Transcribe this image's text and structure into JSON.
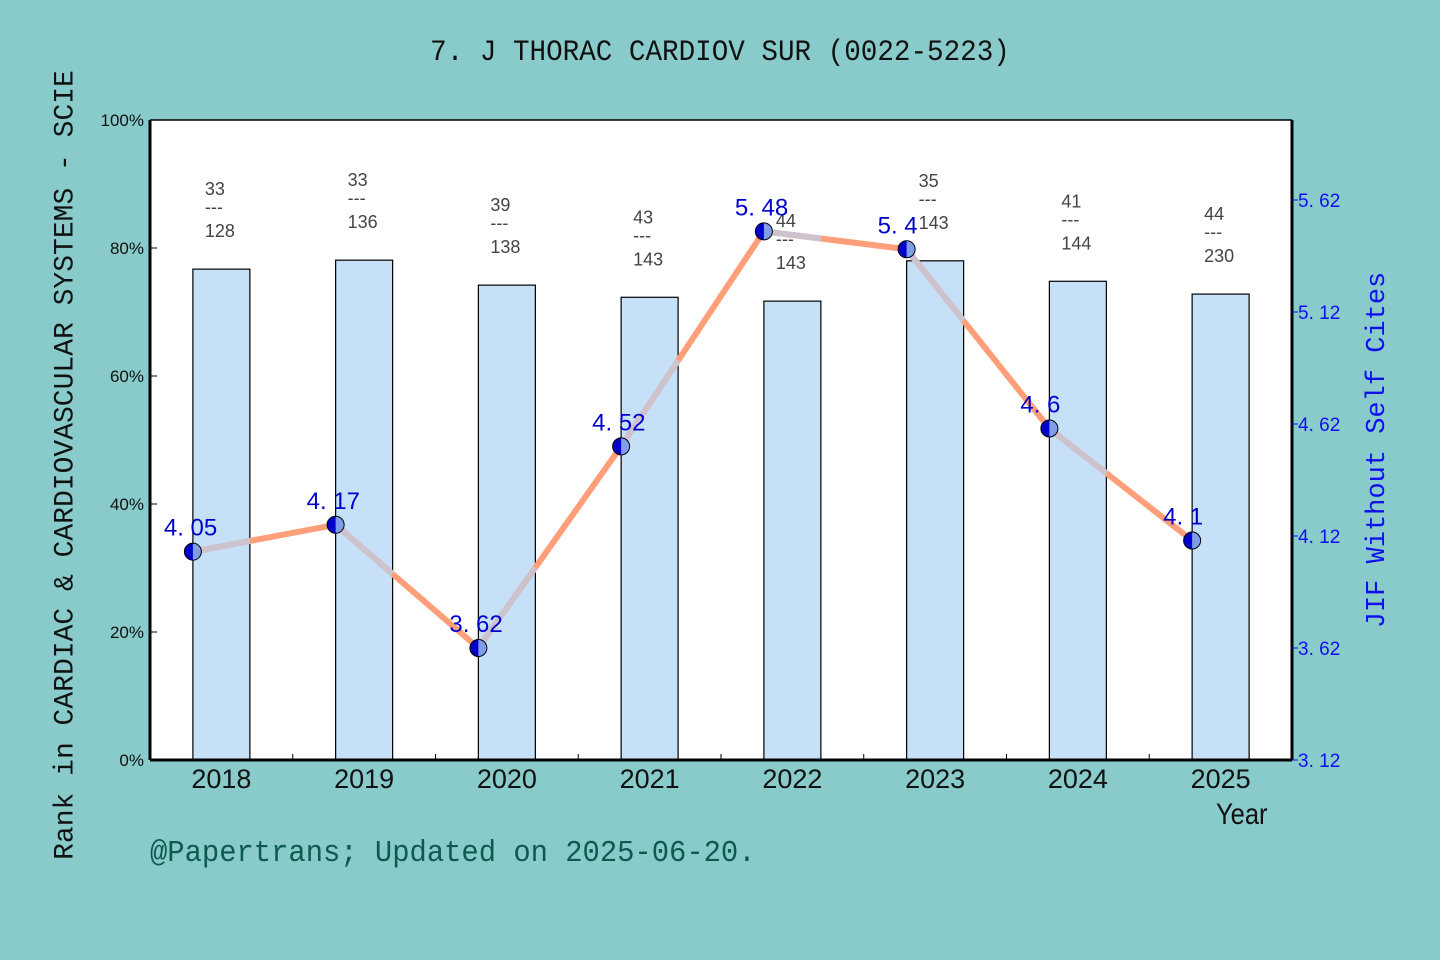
{
  "title": "7. J THORAC CARDIOV SUR (0022-5223)",
  "footer": "@Papertrans; Updated on 2025-06-20.",
  "axes": {
    "xlabel": "Year",
    "ylabel_left": "Rank in CARDIAC & CARDIOVASCULAR SYSTEMS - SCIE",
    "ylabel_right": "JIF Without Self Cites",
    "left_ticks": [
      "0%",
      "20%",
      "40%",
      "60%",
      "80%",
      "100%"
    ],
    "right_ticks": [
      "3. 12",
      "3. 62",
      "4. 12",
      "4. 62",
      "5. 12",
      "5. 62"
    ]
  },
  "colors": {
    "background": "#88cbca",
    "bar_fill": "#c5e0f7",
    "line": "#ff9f7a",
    "line_alt": "#c8c8d8",
    "marker": "#0000cc",
    "marker_light": "#7f9ee8",
    "right_axis": "#1010ee",
    "footer": "#0d5a50"
  },
  "chart_data": {
    "type": "bar+line",
    "title": "7. J THORAC CARDIOV SUR (0022-5223)",
    "xlabel": "Year",
    "categories": [
      "2018",
      "2019",
      "2020",
      "2021",
      "2022",
      "2023",
      "2024",
      "2025"
    ],
    "series": [
      {
        "name": "Rank percentile in CARDIAC & CARDIOVASCULAR SYSTEMS - SCIE",
        "type": "bar",
        "axis": "left",
        "values": [
          76.7,
          78.1,
          74.2,
          72.3,
          71.7,
          78.0,
          74.8,
          72.8
        ],
        "rank_labels": [
          {
            "rank": "33",
            "total": "128"
          },
          {
            "rank": "33",
            "total": "136"
          },
          {
            "rank": "39",
            "total": "138"
          },
          {
            "rank": "43",
            "total": "143"
          },
          {
            "rank": "44",
            "total": "143"
          },
          {
            "rank": "35",
            "total": "143"
          },
          {
            "rank": "41",
            "total": "144"
          },
          {
            "rank": "44",
            "total": "230"
          }
        ]
      },
      {
        "name": "JIF Without Self Cites",
        "type": "line",
        "axis": "right",
        "values": [
          4.05,
          4.17,
          3.62,
          4.52,
          5.48,
          5.4,
          4.6,
          4.1
        ],
        "labels": [
          "4. 05",
          "4. 17",
          "3. 62",
          "4. 52",
          "5. 48",
          "5. 4",
          "4. 6",
          "4. 1"
        ]
      }
    ],
    "ylabel_left": "Rank in CARDIAC & CARDIOVASCULAR SYSTEMS - SCIE",
    "ylim_left": [
      0,
      100
    ],
    "ylabel_right": "JIF Without Self Cites",
    "ylim_right": [
      3.12,
      5.87
    ],
    "right_ticks": [
      3.12,
      3.62,
      4.12,
      4.62,
      5.12,
      5.62
    ],
    "grid": false,
    "legend": "none"
  }
}
